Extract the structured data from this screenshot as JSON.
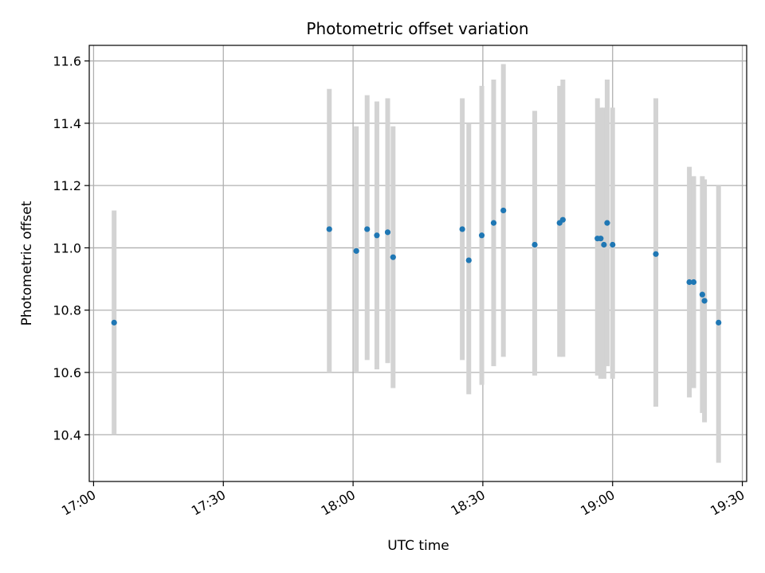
{
  "chart_data": {
    "type": "scatter",
    "title": "Photometric offset variation",
    "xlabel": "UTC time",
    "ylabel": "Photometric offset",
    "x_unit": "minutes after 17:00 UTC",
    "xlim": [
      "16:59",
      "19:31"
    ],
    "ylim": [
      10.25,
      11.65
    ],
    "x_ticks": [
      "17:00",
      "17:30",
      "18:00",
      "18:30",
      "19:00",
      "19:30"
    ],
    "y_ticks": [
      10.4,
      10.6,
      10.8,
      11.0,
      11.2,
      11.4,
      11.6
    ],
    "y_tick_labels": [
      "10.4",
      "10.6",
      "10.8",
      "11.0",
      "11.2",
      "11.4",
      "11.6"
    ],
    "grid": true,
    "point_color": "#1f77b4",
    "errorbar_color": "#d3d3d3",
    "points": [
      {
        "x": "17:04:45",
        "y": 10.76,
        "lo": 10.4,
        "hi": 11.12
      },
      {
        "x": "17:54:30",
        "y": 11.06,
        "lo": 10.6,
        "hi": 11.51
      },
      {
        "x": "18:00:45",
        "y": 10.99,
        "lo": 10.6,
        "hi": 11.39
      },
      {
        "x": "18:03:15",
        "y": 11.06,
        "lo": 10.64,
        "hi": 11.49
      },
      {
        "x": "18:05:30",
        "y": 11.04,
        "lo": 10.61,
        "hi": 11.47
      },
      {
        "x": "18:08:00",
        "y": 11.05,
        "lo": 10.63,
        "hi": 11.48
      },
      {
        "x": "18:09:15",
        "y": 10.97,
        "lo": 10.55,
        "hi": 11.39
      },
      {
        "x": "18:25:15",
        "y": 11.06,
        "lo": 10.64,
        "hi": 11.48
      },
      {
        "x": "18:26:45",
        "y": 10.96,
        "lo": 10.53,
        "hi": 11.4
      },
      {
        "x": "18:29:45",
        "y": 11.04,
        "lo": 10.56,
        "hi": 11.52
      },
      {
        "x": "18:32:30",
        "y": 11.08,
        "lo": 10.62,
        "hi": 11.54
      },
      {
        "x": "18:34:45",
        "y": 11.12,
        "lo": 10.65,
        "hi": 11.59
      },
      {
        "x": "18:42:00",
        "y": 11.01,
        "lo": 10.59,
        "hi": 11.44
      },
      {
        "x": "18:47:45",
        "y": 11.08,
        "lo": 10.65,
        "hi": 11.52
      },
      {
        "x": "18:48:30",
        "y": 11.09,
        "lo": 10.65,
        "hi": 11.54
      },
      {
        "x": "18:56:30",
        "y": 11.03,
        "lo": 10.59,
        "hi": 11.48
      },
      {
        "x": "18:57:15",
        "y": 11.03,
        "lo": 10.58,
        "hi": 11.45
      },
      {
        "x": "18:58:00",
        "y": 11.01,
        "lo": 10.58,
        "hi": 11.45
      },
      {
        "x": "18:58:45",
        "y": 11.08,
        "lo": 10.62,
        "hi": 11.54
      },
      {
        "x": "19:00:00",
        "y": 11.01,
        "lo": 10.58,
        "hi": 11.45
      },
      {
        "x": "19:10:00",
        "y": 10.98,
        "lo": 10.49,
        "hi": 11.48
      },
      {
        "x": "19:17:45",
        "y": 10.89,
        "lo": 10.52,
        "hi": 11.26
      },
      {
        "x": "19:18:45",
        "y": 10.89,
        "lo": 10.55,
        "hi": 11.23
      },
      {
        "x": "19:20:45",
        "y": 10.85,
        "lo": 10.47,
        "hi": 11.23
      },
      {
        "x": "19:21:15",
        "y": 10.83,
        "lo": 10.44,
        "hi": 11.22
      },
      {
        "x": "19:24:30",
        "y": 10.76,
        "lo": 10.31,
        "hi": 11.2
      }
    ]
  }
}
